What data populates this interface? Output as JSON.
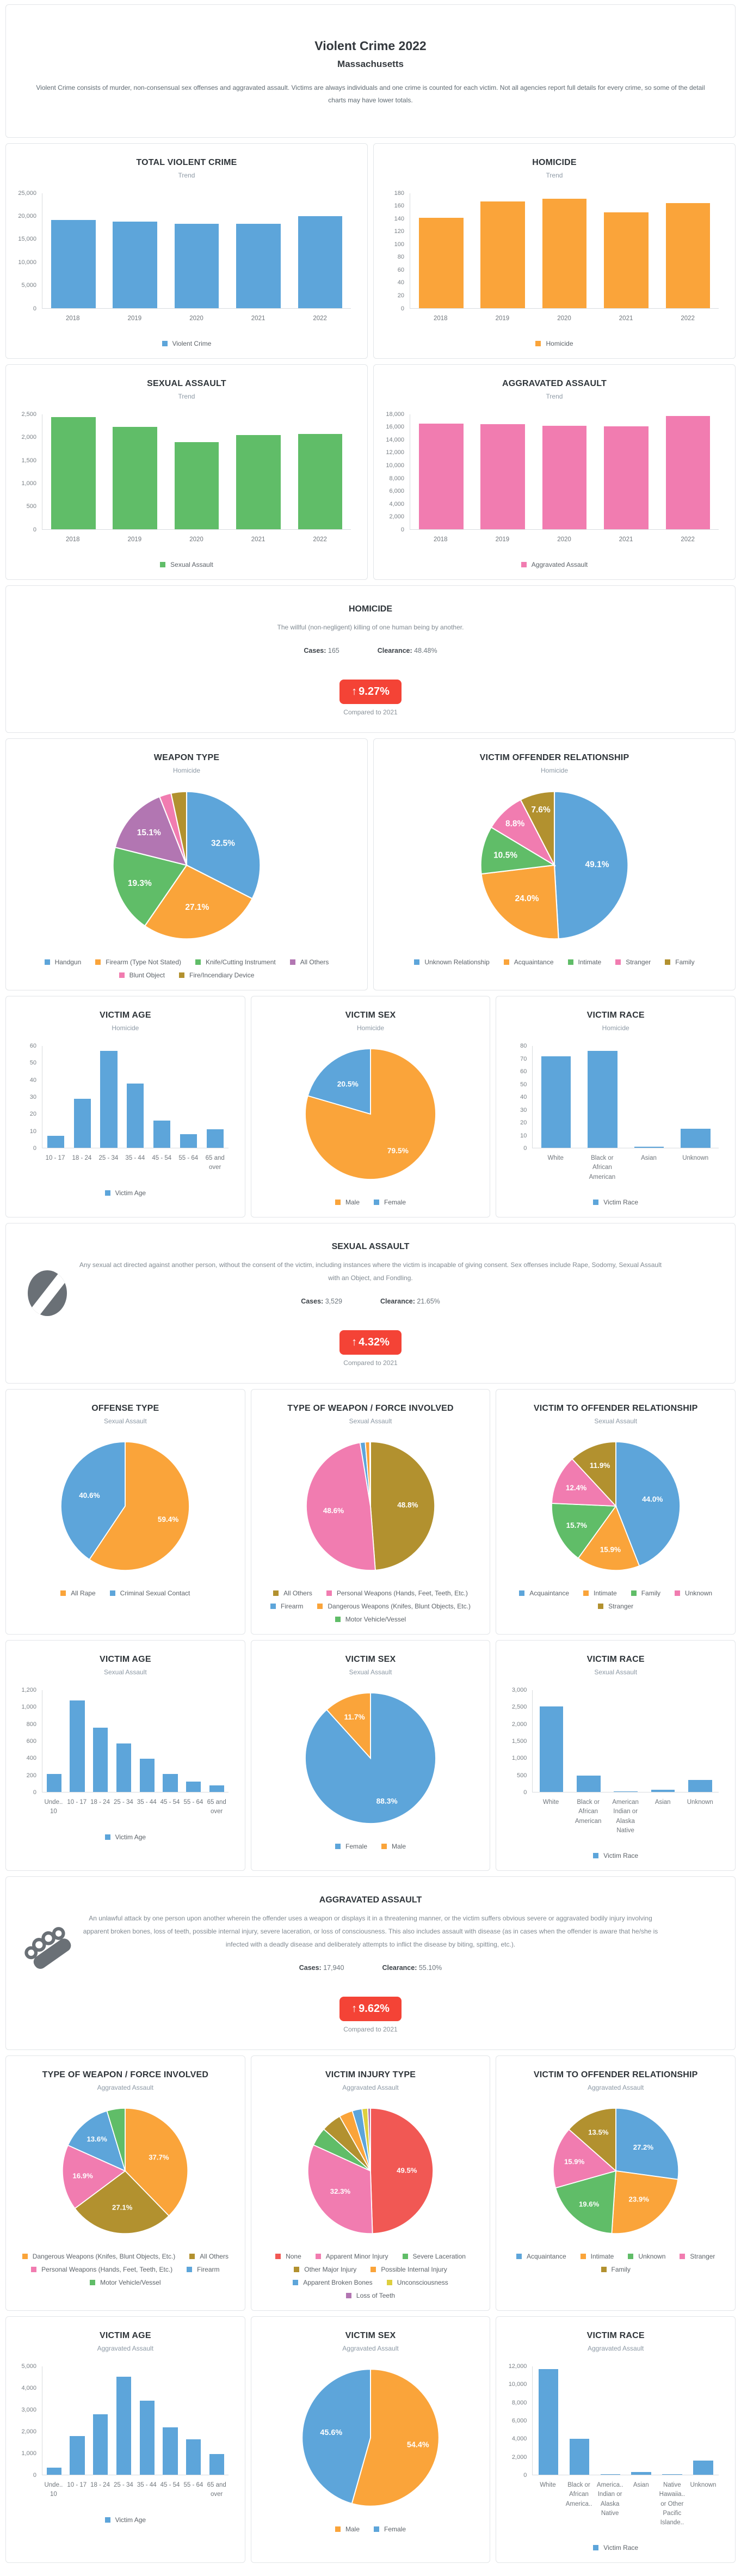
{
  "palette": {
    "blue": "#5da5da",
    "orange": "#faa43a",
    "green": "#60bd68",
    "pink": "#f17cb0",
    "olive": "#b2912f",
    "purple": "#b276b2",
    "red": "#f15854",
    "yellow": "#decf3f",
    "icon_gray": "#6a7076",
    "badge_red": "#f44336"
  },
  "header": {
    "title": "Violent Crime 2022",
    "subtitle": "Massachusetts",
    "description": "Violent Crime consists of murder, non-consensual sex offenses and aggravated assault.  Victims are always individuals and one crime is counted for each victim.  Not all agencies report full details for every crime, so some of the detail charts may have lower totals."
  },
  "info_sections": {
    "homicide": {
      "title": "HOMICIDE",
      "description": "The willful (non-negligent) killing of one human being by another.",
      "cases_label": "Cases:",
      "cases": "165",
      "clearance_label": "Clearance:",
      "clearance": "48.48%",
      "arrow": "↑",
      "change": "9.27%",
      "compared": "Compared to 2021"
    },
    "sexual_assault": {
      "title": "SEXUAL ASSAULT",
      "description": "Any sexual act directed against another person, without the consent of the victim, including instances where the victim is incapable of giving consent. Sex offenses include Rape, Sodomy, Sexual Assault with an Object, and Fondling.",
      "cases_label": "Cases:",
      "cases": "3,529",
      "clearance_label": "Clearance:",
      "clearance": "21.65%",
      "arrow": "↑",
      "change": "4.32%",
      "compared": "Compared to 2021"
    },
    "aggravated_assault": {
      "title": "AGGRAVATED ASSAULT",
      "description": "An unlawful attack by one person upon another wherein the offender uses a weapon or displays it in a threatening manner, or the victim suffers obvious severe or aggravated bodily injury involving apparent broken bones, loss of teeth, possible internal injury, severe laceration, or loss of consciousness. This also includes assault with disease (as in cases when the offender is aware that he/she is infected with a deadly disease and deliberately attempts to inflict the disease by biting, spitting, etc.).",
      "cases_label": "Cases:",
      "cases": "17,940",
      "clearance_label": "Clearance:",
      "clearance": "55.10%",
      "arrow": "↑",
      "change": "9.62%",
      "compared": "Compared to 2021"
    }
  },
  "chart_data": [
    {
      "id": "total_violent_crime_trend",
      "type": "bar",
      "title": "TOTAL VIOLENT CRIME",
      "subtitle": "Trend",
      "categories": [
        "2018",
        "2019",
        "2020",
        "2021",
        "2022"
      ],
      "values": [
        19100,
        18800,
        18300,
        18350,
        19950
      ],
      "color": "blue",
      "ylim": [
        0,
        25000
      ],
      "ystep": 5000,
      "legend": [
        {
          "label": "Violent Crime",
          "color": "blue"
        }
      ]
    },
    {
      "id": "homicide_trend",
      "type": "bar",
      "title": "HOMICIDE",
      "subtitle": "Trend",
      "categories": [
        "2018",
        "2019",
        "2020",
        "2021",
        "2022"
      ],
      "values": [
        141,
        167,
        171,
        150,
        164
      ],
      "color": "orange",
      "ylim": [
        0,
        180
      ],
      "ystep": 20,
      "legend": [
        {
          "label": "Homicide",
          "color": "orange"
        }
      ]
    },
    {
      "id": "sexual_assault_trend",
      "type": "bar",
      "title": "SEXUAL ASSAULT",
      "subtitle": "Trend",
      "categories": [
        "2018",
        "2019",
        "2020",
        "2021",
        "2022"
      ],
      "values": [
        2440,
        2230,
        1890,
        2050,
        2070
      ],
      "color": "green",
      "ylim": [
        0,
        2500
      ],
      "ystep": 500,
      "legend": [
        {
          "label": "Sexual Assault",
          "color": "green"
        }
      ]
    },
    {
      "id": "aggravated_assault_trend",
      "type": "bar",
      "title": "AGGRAVATED ASSAULT",
      "subtitle": "Trend",
      "categories": [
        "2018",
        "2019",
        "2020",
        "2021",
        "2022"
      ],
      "values": [
        16550,
        16450,
        16200,
        16100,
        17700
      ],
      "color": "pink",
      "ylim": [
        0,
        18000
      ],
      "ystep": 2000,
      "legend": [
        {
          "label": "Aggravated Assault",
          "color": "pink"
        }
      ]
    },
    {
      "id": "homicide_weapon_type",
      "type": "pie",
      "title": "WEAPON TYPE",
      "subtitle": "Homicide",
      "slices": [
        {
          "label": "Handgun",
          "value": 32.5,
          "pct_label": "32.5%",
          "color": "blue"
        },
        {
          "label": "Firearm (Type Not Stated)",
          "value": 27.1,
          "pct_label": "27.1%",
          "color": "orange"
        },
        {
          "label": "Knife/Cutting Instrument",
          "value": 19.3,
          "pct_label": "19.3%",
          "color": "green"
        },
        {
          "label": "All Others",
          "value": 15.1,
          "pct_label": "15.1%",
          "color": "purple"
        },
        {
          "label": "Blunt Object",
          "value": 2.6,
          "color": "pink"
        },
        {
          "label": "Fire/Incendiary Device",
          "value": 3.4,
          "color": "olive"
        }
      ]
    },
    {
      "id": "homicide_victim_offender_relationship",
      "type": "pie",
      "title": "VICTIM OFFENDER RELATIONSHIP",
      "subtitle": "Homicide",
      "slices": [
        {
          "label": "Unknown Relationship",
          "value": 49.1,
          "pct_label": "49.1%",
          "color": "blue"
        },
        {
          "label": "Acquaintance",
          "value": 24.0,
          "pct_label": "24.0%",
          "color": "orange"
        },
        {
          "label": "Intimate",
          "value": 10.5,
          "pct_label": "10.5%",
          "color": "green"
        },
        {
          "label": "Stranger",
          "value": 8.8,
          "pct_label": "8.8%",
          "color": "pink"
        },
        {
          "label": "Family",
          "value": 7.6,
          "pct_label": "7.6%",
          "color": "olive"
        }
      ]
    },
    {
      "id": "homicide_victim_age",
      "type": "bar",
      "title": "VICTIM AGE",
      "subtitle": "Homicide",
      "categories": [
        "10 - 17",
        "18 - 24",
        "25 - 34",
        "35 - 44",
        "45 - 54",
        "55 - 64",
        "65 and over"
      ],
      "values": [
        7,
        29,
        57,
        38,
        16,
        8,
        11
      ],
      "color": "blue",
      "ylim": [
        0,
        60
      ],
      "ystep": 10,
      "legend": [
        {
          "label": "Victim Age",
          "color": "blue"
        }
      ]
    },
    {
      "id": "homicide_victim_sex",
      "type": "pie",
      "title": "VICTIM SEX",
      "subtitle": "Homicide",
      "slices": [
        {
          "label": "Male",
          "value": 79.5,
          "pct_label": "79.5%",
          "color": "orange"
        },
        {
          "label": "Female",
          "value": 20.5,
          "pct_label": "20.5%",
          "color": "blue"
        }
      ]
    },
    {
      "id": "homicide_victim_race",
      "type": "bar",
      "title": "VICTIM RACE",
      "subtitle": "Homicide",
      "categories": [
        "White",
        "Black or African American",
        "Asian",
        "Unknown"
      ],
      "values": [
        72,
        76,
        1,
        15
      ],
      "color": "blue",
      "ylim": [
        0,
        80
      ],
      "ystep": 10,
      "legend": [
        {
          "label": "Victim Race",
          "color": "blue"
        }
      ]
    },
    {
      "id": "sexual_assault_offense_type",
      "type": "pie",
      "title": "OFFENSE TYPE",
      "subtitle": "Sexual Assault",
      "slices": [
        {
          "label": "All Rape",
          "value": 59.4,
          "pct_label": "59.4%",
          "color": "orange"
        },
        {
          "label": "Criminal Sexual Contact",
          "value": 40.6,
          "pct_label": "40.6%",
          "color": "blue"
        }
      ]
    },
    {
      "id": "sexual_assault_weapon_force",
      "type": "pie",
      "title": "TYPE OF WEAPON / FORCE INVOLVED",
      "subtitle": "Sexual Assault",
      "slices": [
        {
          "label": "All Others",
          "value": 48.8,
          "pct_label": "48.8%",
          "color": "olive"
        },
        {
          "label": "Personal Weapons (Hands, Feet, Teeth, Etc.)",
          "value": 48.6,
          "pct_label": "48.6%",
          "color": "pink"
        },
        {
          "label": "Firearm",
          "value": 1.3,
          "color": "blue"
        },
        {
          "label": "Dangerous Weapons (Knifes, Blunt Objects, Etc.)",
          "value": 1.1,
          "color": "orange"
        },
        {
          "label": "Motor Vehicle/Vessel",
          "value": 0.2,
          "color": "green"
        }
      ]
    },
    {
      "id": "sexual_assault_victim_offender_relationship",
      "type": "pie",
      "title": "VICTIM TO OFFENDER RELATIONSHIP",
      "subtitle": "Sexual Assault",
      "slices": [
        {
          "label": "Acquaintance",
          "value": 44.0,
          "pct_label": "44.0%",
          "color": "blue"
        },
        {
          "label": "Intimate",
          "value": 15.9,
          "pct_label": "15.9%",
          "color": "orange"
        },
        {
          "label": "Family",
          "value": 15.7,
          "pct_label": "15.7%",
          "color": "green"
        },
        {
          "label": "Unknown",
          "value": 12.4,
          "pct_label": "12.4%",
          "color": "pink"
        },
        {
          "label": "Stranger",
          "value": 11.9,
          "pct_label": "11.9%",
          "color": "olive"
        }
      ]
    },
    {
      "id": "sexual_assault_victim_age",
      "type": "bar",
      "title": "VICTIM AGE",
      "subtitle": "Sexual Assault",
      "categories": [
        "Unde.. 10",
        "10 - 17",
        "18 - 24",
        "25 - 34",
        "35 - 44",
        "45 - 54",
        "55 - 64",
        "65 and over"
      ],
      "values": [
        210,
        1080,
        755,
        570,
        390,
        210,
        125,
        75
      ],
      "color": "blue",
      "ylim": [
        0,
        1200
      ],
      "ystep": 200,
      "legend": [
        {
          "label": "Victim Age",
          "color": "blue"
        }
      ]
    },
    {
      "id": "sexual_assault_victim_sex",
      "type": "pie",
      "title": "VICTIM SEX",
      "subtitle": "Sexual Assault",
      "slices": [
        {
          "label": "Female",
          "value": 88.3,
          "pct_label": "88.3%",
          "color": "blue"
        },
        {
          "label": "Male",
          "value": 11.7,
          "pct_label": "11.7%",
          "color": "orange"
        }
      ]
    },
    {
      "id": "sexual_assault_victim_race",
      "type": "bar",
      "title": "VICTIM RACE",
      "subtitle": "Sexual Assault",
      "categories": [
        "White",
        "Black or African American",
        "American Indian or Alaska Native",
        "Asian",
        "Unknown"
      ],
      "values": [
        2520,
        480,
        15,
        70,
        360
      ],
      "color": "blue",
      "ylim": [
        0,
        3000
      ],
      "ystep": 500,
      "legend": [
        {
          "label": "Victim Race",
          "color": "blue"
        }
      ]
    },
    {
      "id": "aggravated_assault_weapon_force",
      "type": "pie",
      "title": "TYPE OF WEAPON / FORCE INVOLVED",
      "subtitle": "Aggravated Assault",
      "slices": [
        {
          "label": "Dangerous Weapons (Knifes, Blunt Objects, Etc.)",
          "value": 37.7,
          "pct_label": "37.7%",
          "color": "orange"
        },
        {
          "label": "All Others",
          "value": 27.1,
          "pct_label": "27.1%",
          "color": "olive"
        },
        {
          "label": "Personal Weapons (Hands, Feet, Teeth, Etc.)",
          "value": 16.9,
          "pct_label": "16.9%",
          "color": "pink"
        },
        {
          "label": "Firearm",
          "value": 13.6,
          "pct_label": "13.6%",
          "color": "blue"
        },
        {
          "label": "Motor Vehicle/Vessel",
          "value": 4.7,
          "color": "green"
        }
      ]
    },
    {
      "id": "aggravated_assault_victim_injury_type",
      "type": "pie",
      "title": "VICTIM INJURY TYPE",
      "subtitle": "Aggravated Assault",
      "slices": [
        {
          "label": "None",
          "value": 49.5,
          "pct_label": "49.5%",
          "color": "red"
        },
        {
          "label": "Apparent Minor Injury",
          "value": 32.3,
          "pct_label": "32.3%",
          "color": "pink"
        },
        {
          "label": "Severe Laceration",
          "value": 4.8,
          "color": "green"
        },
        {
          "label": "Other Major Injury",
          "value": 5.2,
          "color": "olive"
        },
        {
          "label": "Possible Internal Injury",
          "value": 3.5,
          "color": "orange"
        },
        {
          "label": "Apparent Broken Bones",
          "value": 2.5,
          "color": "blue"
        },
        {
          "label": "Unconsciousness",
          "value": 1.5,
          "color": "yellow"
        },
        {
          "label": "Loss of Teeth",
          "value": 0.7,
          "color": "purple"
        }
      ]
    },
    {
      "id": "aggravated_assault_victim_offender_relationship",
      "type": "pie",
      "title": "VICTIM TO OFFENDER RELATIONSHIP",
      "subtitle": "Aggravated Assault",
      "slices": [
        {
          "label": "Acquaintance",
          "value": 27.2,
          "pct_label": "27.2%",
          "color": "blue"
        },
        {
          "label": "Intimate",
          "value": 23.9,
          "pct_label": "23.9%",
          "color": "orange"
        },
        {
          "label": "Unknown",
          "value": 19.6,
          "pct_label": "19.6%",
          "color": "green"
        },
        {
          "label": "Stranger",
          "value": 15.9,
          "pct_label": "15.9%",
          "color": "pink"
        },
        {
          "label": "Family",
          "value": 13.5,
          "pct_label": "13.5%",
          "color": "olive"
        }
      ]
    },
    {
      "id": "aggravated_assault_victim_age",
      "type": "bar",
      "title": "VICTIM AGE",
      "subtitle": "Aggravated Assault",
      "categories": [
        "Unde.. 10",
        "10 - 17",
        "18 - 24",
        "25 - 34",
        "35 - 44",
        "45 - 54",
        "55 - 64",
        "65 and over"
      ],
      "values": [
        330,
        1780,
        2780,
        4530,
        3430,
        2200,
        1640,
        950
      ],
      "color": "blue",
      "ylim": [
        0,
        5000
      ],
      "ystep": 1000,
      "legend": [
        {
          "label": "Victim Age",
          "color": "blue"
        }
      ]
    },
    {
      "id": "aggravated_assault_victim_sex",
      "type": "pie",
      "title": "VICTIM SEX",
      "subtitle": "Aggravated Assault",
      "slices": [
        {
          "label": "Male",
          "value": 54.4,
          "pct_label": "54.4%",
          "color": "orange"
        },
        {
          "label": "Female",
          "value": 45.6,
          "pct_label": "45.6%",
          "color": "blue"
        }
      ]
    },
    {
      "id": "aggravated_assault_victim_race",
      "type": "bar",
      "title": "VICTIM RACE",
      "subtitle": "Aggravated Assault",
      "categories": [
        "White",
        "Black or African America..",
        "America.. Indian or Alaska Native",
        "Asian",
        "Native Hawaiia.. or Other Pacific Islande..",
        "Unknown"
      ],
      "values": [
        11700,
        4000,
        60,
        280,
        40,
        1600
      ],
      "color": "blue",
      "ylim": [
        0,
        12000
      ],
      "ystep": 2000,
      "legend": [
        {
          "label": "Victim Race",
          "color": "blue"
        }
      ]
    }
  ]
}
